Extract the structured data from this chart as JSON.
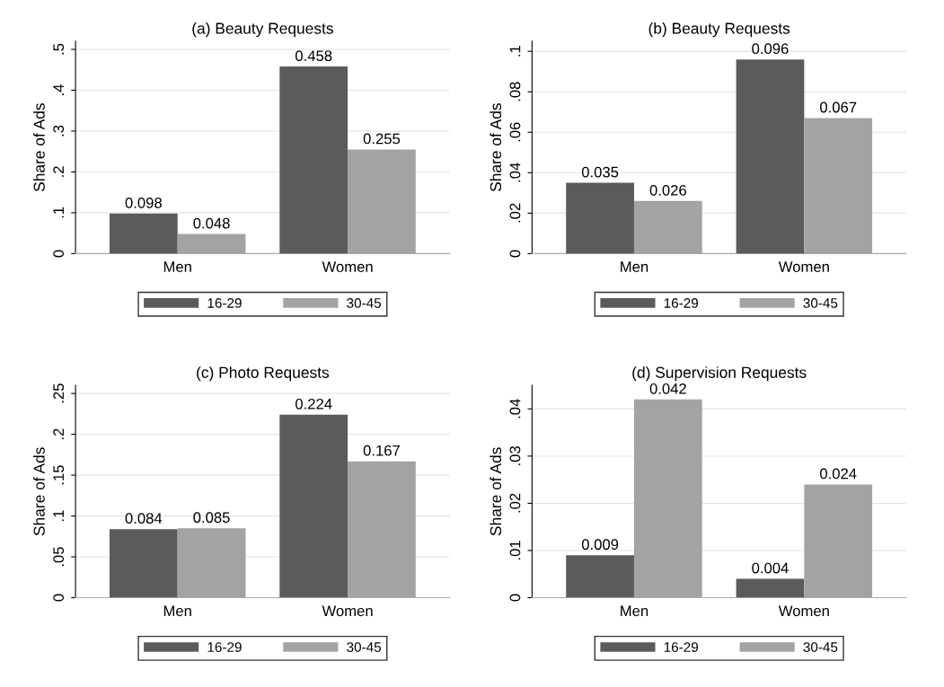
{
  "chart_data": [
    {
      "type": "bar",
      "title": "(a) Beauty Requests",
      "ylabel": "Share of Ads",
      "categories": [
        "Men",
        "Women"
      ],
      "series": [
        {
          "name": "16-29",
          "color": "#5b5b5b",
          "values": [
            0.098,
            0.458
          ]
        },
        {
          "name": "30-45",
          "color": "#a3a3a3",
          "values": [
            0.048,
            0.255
          ]
        }
      ],
      "ylim": [
        0,
        0.52
      ],
      "yticks": [
        0,
        {
          "value": 0.1,
          "label": ".1"
        },
        {
          "value": 0.2,
          "label": ".2"
        },
        {
          "value": 0.3,
          "label": ".3"
        },
        {
          "value": 0.4,
          "label": ".4"
        },
        {
          "value": 0.5,
          "label": ".5"
        }
      ],
      "data_labels": true,
      "grid": "y",
      "legend": "bottom"
    },
    {
      "type": "bar",
      "title": "(b) Beauty Requests",
      "ylabel": "Share of Ads",
      "categories": [
        "Men",
        "Women"
      ],
      "series": [
        {
          "name": "16-29",
          "color": "#5b5b5b",
          "values": [
            0.035,
            0.096
          ]
        },
        {
          "name": "30-45",
          "color": "#a3a3a3",
          "values": [
            0.026,
            0.067
          ]
        }
      ],
      "ylim": [
        0,
        0.105
      ],
      "yticks": [
        0,
        {
          "value": 0.02,
          "label": ".02"
        },
        {
          "value": 0.04,
          "label": ".04"
        },
        {
          "value": 0.06,
          "label": ".06"
        },
        {
          "value": 0.08,
          "label": ".08"
        },
        {
          "value": 0.1,
          "label": ".1"
        }
      ],
      "data_labels": true,
      "grid": "y",
      "legend": "bottom"
    },
    {
      "type": "bar",
      "title": "(c) Photo Requests",
      "ylabel": "Share of Ads",
      "categories": [
        "Men",
        "Women"
      ],
      "series": [
        {
          "name": "16-29",
          "color": "#5b5b5b",
          "values": [
            0.084,
            0.224
          ]
        },
        {
          "name": "30-45",
          "color": "#a3a3a3",
          "values": [
            0.085,
            0.167
          ]
        }
      ],
      "ylim": [
        0,
        0.26
      ],
      "yticks": [
        0,
        {
          "value": 0.05,
          "label": ".05"
        },
        {
          "value": 0.1,
          "label": ".1"
        },
        {
          "value": 0.15,
          "label": ".15"
        },
        {
          "value": 0.2,
          "label": ".2"
        },
        {
          "value": 0.25,
          "label": ".25"
        }
      ],
      "data_labels": true,
      "grid": "y",
      "legend": "bottom"
    },
    {
      "type": "bar",
      "title": "(d) Supervision Requests",
      "ylabel": "Share of Ads",
      "categories": [
        "Men",
        "Women"
      ],
      "series": [
        {
          "name": "16-29",
          "color": "#5b5b5b",
          "values": [
            0.009,
            0.004
          ]
        },
        {
          "name": "30-45",
          "color": "#a3a3a3",
          "values": [
            0.042,
            0.024
          ]
        }
      ],
      "ylim": [
        0,
        0.045
      ],
      "yticks": [
        0,
        {
          "value": 0.01,
          "label": ".01"
        },
        {
          "value": 0.02,
          "label": ".02"
        },
        {
          "value": 0.03,
          "label": ".03"
        },
        {
          "value": 0.04,
          "label": ".04"
        }
      ],
      "data_labels": true,
      "grid": "y",
      "legend": "bottom"
    }
  ]
}
